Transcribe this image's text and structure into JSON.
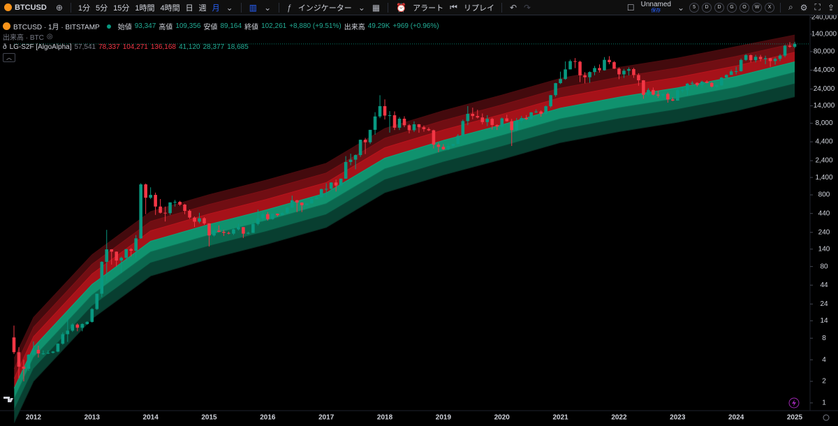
{
  "header": {
    "symbol": "BTCUSD",
    "intervals": [
      "1分",
      "5分",
      "15分",
      "1時間",
      "4時間",
      "日",
      "週",
      "月"
    ],
    "indicators": "インジケーター",
    "alert": "アラート",
    "replay": "リプレイ",
    "layout_name": "Unnamed",
    "save": "保存",
    "chips": [
      "5",
      "D",
      "D",
      "G",
      "O",
      "W",
      "X"
    ]
  },
  "legend": {
    "title": "BTCUSD · 1月 · BITSTAMP",
    "ohlc": [
      {
        "name": "始値",
        "value": {
          "value": 93347,
          "label": "93,347"
        }
      },
      {
        "name": "高値",
        "value": {
          "value": 109356,
          "label": "109,356"
        }
      },
      {
        "name": "安値",
        "value": {
          "value": 89164,
          "label": "89,164"
        }
      },
      {
        "name": "終値",
        "value": {
          "value": 102261,
          "label": "102,261"
        }
      }
    ],
    "change": "+8,880 (+9.51%)",
    "volume_name": "出来高",
    "volume": "49.29K",
    "volume_change": "+969 (+0.96%)",
    "volume_pane": "出来高 · BTC",
    "indicator": "LG-S2F [AlgoAlpha]",
    "readout": [
      {
        "value": 57541,
        "label": "57,541",
        "color": "#787b86"
      },
      {
        "value": 78337,
        "label": "78,337",
        "color": "#f23645"
      },
      {
        "value": 104271,
        "label": "104,271",
        "color": "#f23645"
      },
      {
        "value": 136168,
        "label": "136,168",
        "color": "#f23645"
      },
      {
        "value": 41120,
        "label": "41,120",
        "color": "#22ab94"
      },
      {
        "value": 28377,
        "label": "28,377",
        "color": "#22ab94"
      },
      {
        "value": 18685,
        "label": "18,685",
        "color": "#22ab94"
      }
    ]
  },
  "chart_data": {
    "type": "candlestick",
    "log_scale": true,
    "grid": false,
    "up_color": "#089981",
    "down_color": "#f23645",
    "categories": [
      null,
      null,
      null,
      null,
      "2012",
      null,
      null,
      null,
      null,
      null,
      null,
      null,
      null,
      null,
      null,
      null,
      "2013",
      null,
      null,
      null,
      null,
      null,
      null,
      null,
      null,
      null,
      null,
      null,
      "2014",
      null,
      null,
      null,
      null,
      null,
      null,
      null,
      null,
      null,
      null,
      null,
      "2015",
      null,
      null,
      null,
      null,
      null,
      null,
      null,
      null,
      null,
      null,
      null,
      "2016",
      null,
      null,
      null,
      null,
      null,
      null,
      null,
      null,
      null,
      null,
      null,
      "2017",
      null,
      null,
      null,
      null,
      null,
      null,
      null,
      null,
      null,
      null,
      null,
      "2018",
      null,
      null,
      null,
      null,
      null,
      null,
      null,
      null,
      null,
      null,
      null,
      "2019",
      null,
      null,
      null,
      null,
      null,
      null,
      null,
      null,
      null,
      null,
      null,
      "2020",
      null,
      null,
      null,
      null,
      null,
      null,
      null,
      null,
      null,
      null,
      null,
      "2021",
      null,
      null,
      null,
      null,
      null,
      null,
      null,
      null,
      null,
      null,
      null,
      "2022",
      null,
      null,
      null,
      null,
      null,
      null,
      null,
      null,
      null,
      null,
      null,
      "2023",
      null,
      null,
      null,
      null,
      null,
      null,
      null,
      null,
      null,
      null,
      null,
      "2024",
      null,
      null,
      null,
      null,
      null,
      null,
      null,
      null,
      null,
      null,
      null,
      "2025"
    ],
    "open": [
      8.2,
      5.1,
      3.2,
      3.0,
      4.7,
      5.5,
      4.9,
      4.9,
      5.0,
      5.2,
      6.7,
      9.1,
      10.2,
      12.4,
      11.2,
      12.6,
      13.5,
      20.4,
      33.4,
      93,
      139,
      129,
      97,
      106,
      140,
      133,
      198,
      1120,
      730,
      800,
      550,
      450,
      445,
      628,
      640,
      585,
      478,
      386,
      338,
      378,
      320,
      217,
      254,
      244,
      236,
      230,
      264,
      284,
      230,
      236,
      314,
      378,
      430,
      368,
      437,
      416,
      448,
      531,
      673,
      624,
      575,
      608,
      700,
      742,
      964,
      970,
      1190,
      1080,
      1348,
      2300,
      2480,
      2875,
      4703,
      4338,
      6468,
      9946,
      13850,
      10220,
      10330,
      6925,
      9245,
      7495,
      6390,
      7730,
      7025,
      6626,
      6371,
      4017,
      3743,
      3457,
      3854,
      4105,
      5350,
      8574,
      10817,
      10085,
      9630,
      8293,
      9199,
      7546,
      7193,
      9350,
      8523,
      6410,
      8629,
      9455,
      9137,
      11335,
      11650,
      10779,
      13804,
      19700,
      28990,
      33108,
      45137,
      58800,
      57720,
      37300,
      35040,
      41460,
      47100,
      43820,
      61300,
      56950,
      46200,
      38480,
      43180,
      45530,
      37640,
      31790,
      19930,
      23300,
      20050,
      19420,
      20490,
      17170,
      16540,
      23130,
      23150,
      28480,
      29250,
      27220,
      30470,
      29230,
      25940,
      26970,
      34660,
      37720,
      42280,
      42580,
      61170,
      71290,
      60640,
      67520,
      62670,
      64620,
      58970,
      63330,
      70220,
      96450,
      93347
    ],
    "high": [
      12,
      6,
      4,
      4.8,
      7.2,
      6.3,
      5.4,
      5.4,
      5.3,
      6.8,
      9.6,
      15.4,
      12.9,
      12.9,
      12.9,
      13.8,
      21,
      33.5,
      95,
      260,
      140,
      130,
      110,
      140,
      145,
      220,
      1160,
      1150,
      1020,
      860,
      700,
      550,
      630,
      680,
      660,
      600,
      500,
      400,
      450,
      390,
      320,
      265,
      300,
      260,
      246,
      270,
      316,
      285,
      245,
      330,
      500,
      465,
      460,
      440,
      440,
      460,
      540,
      780,
      680,
      630,
      615,
      730,
      760,
      975,
      1160,
      1200,
      1310,
      1350,
      2780,
      3000,
      2930,
      4730,
      4990,
      6470,
      11400,
      19660,
      17200,
      11800,
      11700,
      9750,
      9990,
      7780,
      8500,
      7800,
      7430,
      6990,
      6500,
      4280,
      4070,
      4200,
      4120,
      5640,
      9000,
      13880,
      13190,
      12320,
      10940,
      10360,
      9500,
      7750,
      9600,
      10530,
      9190,
      9460,
      10070,
      10390,
      11440,
      12470,
      12070,
      14100,
      19850,
      29300,
      41950,
      58350,
      61790,
      64900,
      59480,
      41330,
      42310,
      50500,
      52920,
      67000,
      69000,
      59050,
      47990,
      45820,
      48200,
      47450,
      39900,
      31980,
      24670,
      25200,
      22800,
      20990,
      21470,
      18380,
      23950,
      25250,
      29190,
      30970,
      29800,
      31400,
      31800,
      30130,
      28040,
      35200,
      38420,
      44700,
      48970,
      63970,
      73790,
      72800,
      71950,
      71980,
      70020,
      65100,
      66500,
      73600,
      99600,
      108350,
      109356
    ],
    "low": [
      4.8,
      2.2,
      2.0,
      2.8,
      4.6,
      4.3,
      4.7,
      4.8,
      4.9,
      5.1,
      6.5,
      7.1,
      9.8,
      10.0,
      10.0,
      12.3,
      13.2,
      19.8,
      30,
      50,
      85,
      80,
      65,
      96,
      110,
      105,
      195,
      430,
      700,
      420,
      440,
      340,
      420,
      550,
      560,
      430,
      370,
      285,
      320,
      305,
      152,
      210,
      240,
      214,
      225,
      220,
      255,
      200,
      225,
      235,
      300,
      345,
      350,
      360,
      400,
      415,
      440,
      530,
      460,
      460,
      570,
      605,
      695,
      736,
      750,
      930,
      890,
      1050,
      1340,
      2070,
      1820,
      2710,
      2970,
      4110,
      5520,
      9420,
      9000,
      5920,
      6430,
      6430,
      7040,
      5780,
      6050,
      5890,
      6100,
      6210,
      3560,
      3150,
      3380,
      3380,
      3730,
      4060,
      5340,
      7510,
      9080,
      9330,
      7700,
      7300,
      6530,
      6440,
      6860,
      8440,
      3850,
      6200,
      8110,
      8900,
      9020,
      11100,
      9880,
      10540,
      13200,
      18700,
      28130,
      32300,
      45000,
      47000,
      30000,
      28800,
      29270,
      37330,
      40800,
      43300,
      53250,
      45670,
      32950,
      34320,
      37180,
      34300,
      26700,
      17570,
      18780,
      19550,
      18140,
      18170,
      15480,
      16250,
      16500,
      21400,
      19560,
      26950,
      25860,
      24780,
      28870,
      25200,
      24910,
      26540,
      34100,
      37600,
      38500,
      41880,
      59000,
      56550,
      56500,
      58400,
      53500,
      49000,
      52550,
      58870,
      66800,
      90500,
      89164
    ],
    "close": [
      5.1,
      3.2,
      3.0,
      4.7,
      5.5,
      4.9,
      4.9,
      5.0,
      5.2,
      6.7,
      9.1,
      10.2,
      12.4,
      11.2,
      12.6,
      13.5,
      20.4,
      33.4,
      93,
      139,
      129,
      97,
      106,
      140,
      133,
      198,
      1120,
      730,
      800,
      550,
      450,
      445,
      628,
      640,
      585,
      478,
      386,
      338,
      378,
      320,
      217,
      254,
      244,
      236,
      230,
      264,
      284,
      230,
      236,
      314,
      378,
      430,
      368,
      437,
      416,
      448,
      531,
      673,
      624,
      575,
      608,
      700,
      742,
      964,
      970,
      1190,
      1080,
      1348,
      2300,
      2480,
      2875,
      4703,
      4338,
      6468,
      9946,
      13850,
      10220,
      10330,
      6925,
      9245,
      7495,
      6390,
      7730,
      7025,
      6626,
      6371,
      4017,
      3743,
      3457,
      3854,
      4105,
      5350,
      8574,
      10817,
      10085,
      9630,
      8293,
      9199,
      7546,
      7193,
      9350,
      8523,
      6410,
      8629,
      9455,
      9137,
      11335,
      11650,
      10779,
      13804,
      19700,
      28990,
      33108,
      45137,
      58800,
      57720,
      37300,
      35040,
      41460,
      47100,
      43820,
      61300,
      56950,
      46200,
      38480,
      43180,
      45530,
      37640,
      31790,
      19930,
      23300,
      20050,
      19420,
      20490,
      17170,
      16540,
      23130,
      23150,
      28480,
      29250,
      27220,
      30470,
      29230,
      25940,
      26970,
      34660,
      37720,
      42280,
      42580,
      61170,
      71290,
      60640,
      67520,
      62670,
      64620,
      58970,
      63330,
      70220,
      96450,
      93381,
      102261
    ],
    "ylim": [
      0.78,
      256000
    ],
    "yticks": [
      {
        "value": 240000,
        "label": "240,000"
      },
      {
        "value": 140000,
        "label": "140,000"
      },
      {
        "value": 80000,
        "label": "80,000"
      },
      {
        "value": 44000,
        "label": "44,000"
      },
      {
        "value": 24000,
        "label": "24,000"
      },
      {
        "value": 14000,
        "label": "14,000"
      },
      {
        "value": 8000,
        "label": "8,000"
      },
      {
        "value": 4400,
        "label": "4,400"
      },
      {
        "value": 2400,
        "label": "2,400"
      },
      {
        "value": 1400,
        "label": "1,400"
      },
      800,
      440,
      240,
      140,
      80,
      44,
      24,
      14,
      8,
      4,
      2,
      1
    ],
    "bands": {
      "x": [
        2011.67,
        2012,
        2013,
        2014,
        2015,
        2016,
        2017,
        2018,
        2019,
        2020,
        2021,
        2022,
        2023,
        2024,
        2025
      ],
      "series": [
        {
          "color": "#4a0b0e",
          "values": [
            4.2,
            15.6,
            117,
            468,
            806,
            1300,
            2210,
            6760,
            11960,
            19760,
            33800,
            48100,
            65000,
            93600,
            136168
          ]
        },
        {
          "color": "#7d1015",
          "values": [
            3.0,
            11.4,
            86,
            342,
            589,
            950,
            1615,
            4940,
            8740,
            14440,
            24700,
            35150,
            47500,
            68400,
            104271
          ]
        },
        {
          "color": "#b8141c",
          "values": [
            2.2,
            8.4,
            63,
            252,
            434,
            700,
            1190,
            3640,
            6440,
            10640,
            18200,
            25900,
            35000,
            50400,
            78337
          ]
        },
        {
          "color": "#12a27a",
          "values": [
            1.6,
            6,
            45,
            180,
            310,
            500,
            850,
            2600,
            4600,
            7600,
            13000,
            18500,
            25000,
            36000,
            57541
          ]
        },
        {
          "color": "#0c7257",
          "values": [
            1.14,
            4.3,
            32,
            128,
            220,
            355,
            604,
            1846,
            3266,
            5396,
            9230,
            13135,
            17750,
            25560,
            41120
          ]
        },
        {
          "color": "#094535",
          "values": [
            0.8,
            3,
            22.5,
            90,
            155,
            250,
            425,
            1300,
            2300,
            3800,
            6500,
            9250,
            12500,
            18000,
            28377
          ]
        },
        {
          "color": "#0a2c23",
          "values": [
            0.53,
            2,
            14.9,
            59,
            102,
            165,
            281,
            858,
            1518,
            2508,
            4290,
            6105,
            8250,
            11880,
            18685
          ]
        }
      ]
    }
  }
}
